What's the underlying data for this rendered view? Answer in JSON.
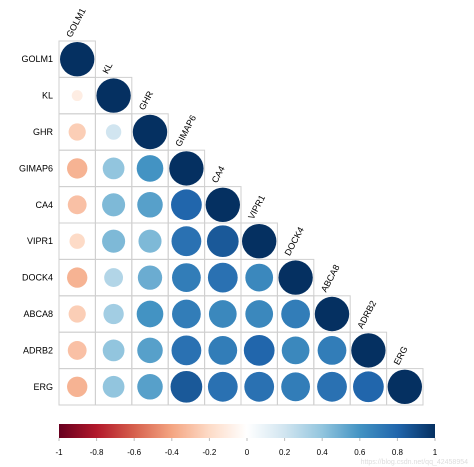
{
  "chart_data": {
    "type": "heatmap",
    "subtype": "correlation-circle-lower-triangle",
    "title": "",
    "xlabel": "",
    "ylabel": "",
    "variables": [
      "GOLM1",
      "KL",
      "GHR",
      "GIMAP6",
      "CA4",
      "VIPR1",
      "DOCK4",
      "ABCA8",
      "ADRB2",
      "ERG"
    ],
    "matrix": [
      [
        1.0
      ],
      [
        -0.1,
        1.0
      ],
      [
        -0.25,
        0.2,
        1.0
      ],
      [
        -0.35,
        0.4,
        0.6,
        1.0
      ],
      [
        -0.3,
        0.45,
        0.55,
        0.8,
        1.0
      ],
      [
        -0.2,
        0.45,
        0.45,
        0.75,
        0.85,
        1.0
      ],
      [
        -0.35,
        0.3,
        0.5,
        0.7,
        0.75,
        0.65,
        1.0
      ],
      [
        -0.25,
        0.35,
        0.6,
        0.7,
        0.65,
        0.65,
        0.7,
        1.0
      ],
      [
        -0.3,
        0.4,
        0.55,
        0.75,
        0.7,
        0.8,
        0.65,
        0.7,
        1.0
      ],
      [
        -0.35,
        0.4,
        0.55,
        0.85,
        0.75,
        0.75,
        0.7,
        0.75,
        0.8,
        1.0
      ]
    ],
    "colorbar": {
      "range": [
        -1,
        1
      ],
      "tick_labels": [
        "-1",
        "-0.8",
        "-0.6",
        "-0.4",
        "-0.2",
        "0",
        "0.2",
        "0.4",
        "0.6",
        "0.8",
        "1"
      ],
      "colors": [
        "#67001F",
        "#B2182B",
        "#D6604D",
        "#F4A582",
        "#FDDBC7",
        "#FFFFFF",
        "#D1E5F0",
        "#92C5DE",
        "#4393C3",
        "#2166AC",
        "#053061"
      ]
    },
    "grid": true,
    "legend": "bottom"
  },
  "watermark": "https://blog.csdn.net/qq_42458954"
}
